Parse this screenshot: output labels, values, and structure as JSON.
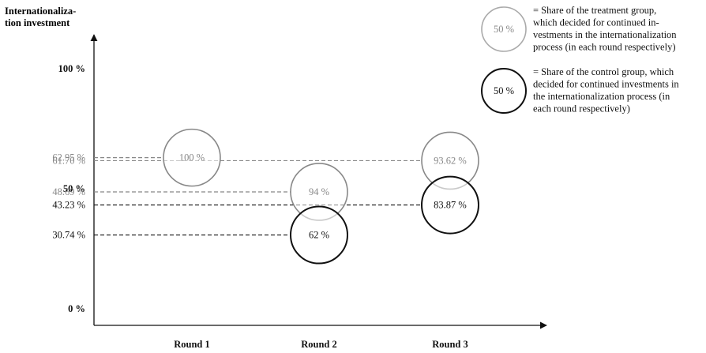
{
  "chart_data": {
    "type": "scatter",
    "ylabel_lines": [
      "Internationaliza-",
      "tion investment"
    ],
    "categories": [
      "Round 1",
      "Round 2",
      "Round 3"
    ],
    "ylim": [
      0,
      100
    ],
    "y_ticks": [
      {
        "value": 100,
        "label": "100 %",
        "bold": true
      },
      {
        "value": 50,
        "label": "50 %",
        "bold": true
      },
      {
        "value": 0,
        "label": "0 %",
        "bold": true
      }
    ],
    "guide_labels": [
      {
        "value": 62.95,
        "label": "62.95 %",
        "group": "treatment",
        "round": 0
      },
      {
        "value": 61.7,
        "label": "61.70 %",
        "group": "treatment",
        "round": 2
      },
      {
        "value": 48.69,
        "label": "48.69 %",
        "group": "treatment",
        "round": 1
      },
      {
        "value": 43.23,
        "label": "43.23 %",
        "group": "control",
        "round": 2
      },
      {
        "value": 30.74,
        "label": "30.74 %",
        "group": "control",
        "round": 1
      }
    ],
    "series": [
      {
        "group": "treatment",
        "color": "#888888",
        "points": [
          {
            "round": 0,
            "y": 62.95,
            "label": "100 %"
          },
          {
            "round": 1,
            "y": 48.69,
            "label": "94 %"
          },
          {
            "round": 2,
            "y": 61.7,
            "label": "93.62 %"
          }
        ]
      },
      {
        "group": "control",
        "color": "#111111",
        "points": [
          {
            "round": 1,
            "y": 30.74,
            "label": "62 %"
          },
          {
            "round": 2,
            "y": 43.23,
            "label": "83.87 %"
          }
        ]
      }
    ],
    "legend": [
      {
        "group": "treatment",
        "color": "#aaaaaa",
        "sample": "50 %",
        "text_lines": [
          "= Share of the treatment group,",
          "which decided for continued in-",
          "vestments in the internationalization",
          "process (in each round respectively)"
        ]
      },
      {
        "group": "control",
        "color": "#111111",
        "sample": "50 %",
        "text_lines": [
          "= Share of the control group, which",
          "decided for continued investments in",
          "the internationalization process (in",
          "each round respectively)"
        ]
      }
    ]
  }
}
